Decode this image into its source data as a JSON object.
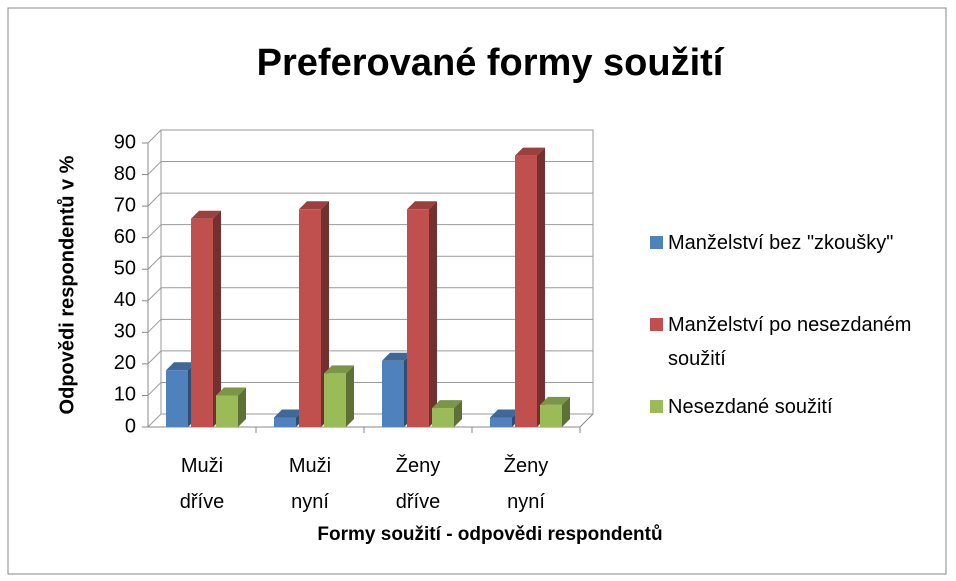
{
  "chart_data": {
    "type": "bar3d",
    "title": "Preferované formy soužití",
    "x_label": "Formy soužití - odpovědi respondentů",
    "y_label": "Odpovědi respondentů v %",
    "categories": [
      "Muži dříve",
      "Muži nyní",
      "Ženy dříve",
      "Ženy nyní"
    ],
    "series": [
      {
        "name": "Manželství bez \"zkoušky\"",
        "color": "#4f81bd",
        "values": [
          18,
          3,
          21,
          3
        ]
      },
      {
        "name": "Manželství po nesezdaném soužití",
        "color": "#c0504d",
        "values": [
          66,
          69,
          69,
          86
        ]
      },
      {
        "name": "Nesezdané soužití",
        "color": "#9bbb59",
        "values": [
          10,
          17,
          6,
          7
        ]
      }
    ],
    "ylim": [
      0,
      90
    ],
    "yticks": [
      0,
      10,
      20,
      30,
      40,
      50,
      60,
      70,
      80,
      90
    ],
    "grid": true,
    "legend": "right"
  }
}
